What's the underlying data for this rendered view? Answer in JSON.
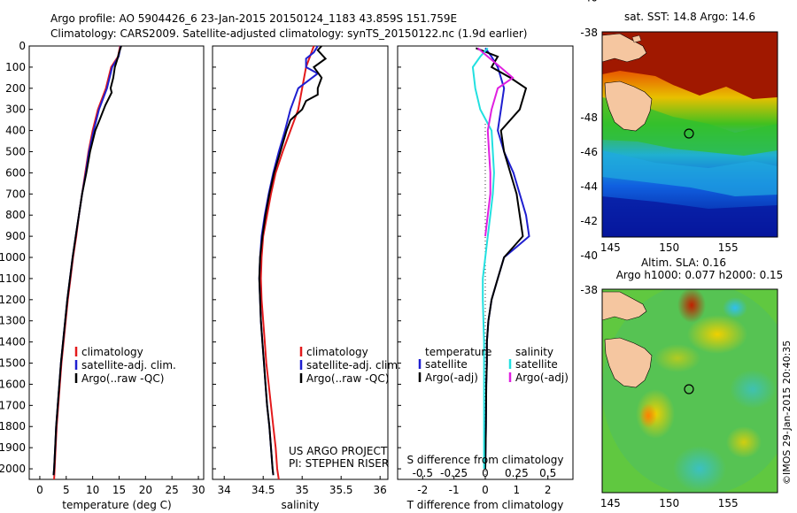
{
  "header": {
    "line1": "Argo profile: AO 5904426_6 23-Jan-2015 20150124_1183 43.859S 151.759E",
    "line2": "Climatology: CARS2009. Satellite-adjusted climatology: synTS_20150122.nc (1.9d earlier)"
  },
  "project": {
    "line1": "US ARGO PROJECT",
    "line2": "PI: STEPHEN RISER"
  },
  "stamp": "©IMOS 29-Jan-2015 20:40:35",
  "colors": {
    "clim": "#e31a1c",
    "sat": "#1f1fd0",
    "argo": "#000000",
    "sat_s": "#22e0e0",
    "argo_s": "#e020e0"
  },
  "chart_data": [
    {
      "type": "line",
      "xlabel": "temperature (deg C)",
      "xlim": [
        -2,
        31
      ],
      "xticks": [
        0,
        5,
        10,
        15,
        20,
        25,
        30
      ],
      "ylim": [
        0,
        2050
      ],
      "yticks": [
        0,
        100,
        200,
        300,
        400,
        500,
        600,
        700,
        800,
        900,
        1000,
        1100,
        1200,
        1300,
        1400,
        1500,
        1600,
        1700,
        1800,
        1900,
        2000
      ],
      "legend": [
        "climatology",
        "satellite-adj. clim.",
        "Argo(..raw -QC)"
      ],
      "series": [
        {
          "name": "climatology",
          "color": "#e31a1c",
          "points": [
            [
              15.2,
              0
            ],
            [
              14.8,
              50
            ],
            [
              13.5,
              100
            ],
            [
              12.5,
              200
            ],
            [
              11,
              300
            ],
            [
              10,
              400
            ],
            [
              9.2,
              500
            ],
            [
              8.6,
              600
            ],
            [
              8,
              700
            ],
            [
              7.4,
              800
            ],
            [
              6.9,
              900
            ],
            [
              6.3,
              1000
            ],
            [
              5.8,
              1100
            ],
            [
              5.3,
              1200
            ],
            [
              4.9,
              1300
            ],
            [
              4.5,
              1400
            ],
            [
              4.1,
              1500
            ],
            [
              3.8,
              1600
            ],
            [
              3.5,
              1700
            ],
            [
              3.2,
              1800
            ],
            [
              3,
              1900
            ],
            [
              2.8,
              2000
            ],
            [
              2.7,
              2050
            ]
          ]
        },
        {
          "name": "satellite-adj. clim.",
          "color": "#1f1fd0",
          "points": [
            [
              15.3,
              0
            ],
            [
              14.9,
              50
            ],
            [
              13.7,
              100
            ],
            [
              12.7,
              200
            ],
            [
              11.2,
              300
            ],
            [
              10.2,
              400
            ],
            [
              9.3,
              500
            ],
            [
              8.7,
              600
            ],
            [
              8,
              700
            ],
            [
              7.4,
              800
            ],
            [
              6.8,
              900
            ],
            [
              6.2,
              1000
            ],
            [
              5.7,
              1100
            ],
            [
              5.2,
              1200
            ],
            [
              4.8,
              1300
            ],
            [
              4.4,
              1400
            ],
            [
              4,
              1500
            ],
            [
              3.7,
              1600
            ],
            [
              3.4,
              1700
            ],
            [
              3.1,
              1800
            ],
            [
              2.9,
              1900
            ],
            [
              2.7,
              2000
            ],
            [
              2.6,
              2030
            ]
          ]
        },
        {
          "name": "Argo(..raw -QC)",
          "color": "#000000",
          "points": [
            [
              15.4,
              0
            ],
            [
              15,
              30
            ],
            [
              14.7,
              60
            ],
            [
              14.2,
              100
            ],
            [
              13.9,
              150
            ],
            [
              13.4,
              200
            ],
            [
              13.6,
              220
            ],
            [
              12.4,
              280
            ],
            [
              11.3,
              350
            ],
            [
              10.5,
              400
            ],
            [
              9.5,
              500
            ],
            [
              8.8,
              600
            ],
            [
              8,
              700
            ],
            [
              7.4,
              800
            ],
            [
              6.8,
              900
            ],
            [
              6.2,
              1000
            ],
            [
              5.7,
              1100
            ],
            [
              5.2,
              1200
            ],
            [
              4.8,
              1300
            ],
            [
              4.4,
              1400
            ],
            [
              4,
              1500
            ],
            [
              3.7,
              1600
            ],
            [
              3.4,
              1700
            ],
            [
              3.1,
              1800
            ],
            [
              2.9,
              1900
            ],
            [
              2.7,
              2000
            ],
            [
              2.6,
              2030
            ]
          ]
        }
      ]
    },
    {
      "type": "line",
      "xlabel": "salinity",
      "xlim": [
        33.85,
        36.1
      ],
      "xticks": [
        34,
        34.5,
        35,
        35.5,
        36
      ],
      "xticklabels": [
        "34",
        "34.5",
        "35",
        "35.5",
        "36"
      ],
      "ylim": [
        0,
        2050
      ],
      "legend": [
        "climatology",
        "satellite-adj. clim.",
        "Argo(..raw -QC)"
      ],
      "series": [
        {
          "name": "climatology",
          "color": "#e31a1c",
          "points": [
            [
              35.15,
              0
            ],
            [
              35.1,
              50
            ],
            [
              35.05,
              100
            ],
            [
              35,
              200
            ],
            [
              34.95,
              300
            ],
            [
              34.85,
              400
            ],
            [
              34.75,
              500
            ],
            [
              34.66,
              600
            ],
            [
              34.6,
              700
            ],
            [
              34.55,
              800
            ],
            [
              34.5,
              900
            ],
            [
              34.48,
              1000
            ],
            [
              34.47,
              1100
            ],
            [
              34.48,
              1200
            ],
            [
              34.5,
              1300
            ],
            [
              34.52,
              1400
            ],
            [
              34.54,
              1500
            ],
            [
              34.57,
              1600
            ],
            [
              34.6,
              1700
            ],
            [
              34.63,
              1800
            ],
            [
              34.66,
              1900
            ],
            [
              34.68,
              2000
            ],
            [
              34.7,
              2050
            ]
          ]
        },
        {
          "name": "satellite-adj. clim.",
          "color": "#1f1fd0",
          "points": [
            [
              35.2,
              0
            ],
            [
              35.15,
              30
            ],
            [
              35.05,
              60
            ],
            [
              35.05,
              100
            ],
            [
              35.2,
              130
            ],
            [
              34.95,
              200
            ],
            [
              34.85,
              300
            ],
            [
              34.78,
              400
            ],
            [
              34.7,
              500
            ],
            [
              34.63,
              600
            ],
            [
              34.57,
              700
            ],
            [
              34.52,
              800
            ],
            [
              34.48,
              900
            ],
            [
              34.46,
              1000
            ],
            [
              34.45,
              1100
            ],
            [
              34.46,
              1200
            ],
            [
              34.47,
              1300
            ],
            [
              34.49,
              1400
            ],
            [
              34.51,
              1500
            ],
            [
              34.53,
              1600
            ],
            [
              34.55,
              1700
            ],
            [
              34.58,
              1800
            ],
            [
              34.6,
              1900
            ],
            [
              34.62,
              2000
            ],
            [
              34.63,
              2030
            ]
          ]
        },
        {
          "name": "Argo(..raw -QC)",
          "color": "#000000",
          "points": [
            [
              35.25,
              0
            ],
            [
              35.2,
              20
            ],
            [
              35.3,
              60
            ],
            [
              35.15,
              100
            ],
            [
              35.25,
              150
            ],
            [
              35.2,
              200
            ],
            [
              35.2,
              230
            ],
            [
              35.05,
              260
            ],
            [
              35,
              300
            ],
            [
              34.85,
              350
            ],
            [
              34.8,
              400
            ],
            [
              34.72,
              500
            ],
            [
              34.64,
              600
            ],
            [
              34.58,
              700
            ],
            [
              34.53,
              800
            ],
            [
              34.49,
              900
            ],
            [
              34.46,
              1000
            ],
            [
              34.45,
              1100
            ],
            [
              34.46,
              1200
            ],
            [
              34.47,
              1300
            ],
            [
              34.49,
              1400
            ],
            [
              34.51,
              1500
            ],
            [
              34.53,
              1600
            ],
            [
              34.55,
              1700
            ],
            [
              34.58,
              1800
            ],
            [
              34.6,
              1900
            ],
            [
              34.62,
              2000
            ],
            [
              34.63,
              2030
            ]
          ]
        }
      ]
    },
    {
      "type": "line",
      "xlabel": "T difference from climatology",
      "xlabel2": "S difference from climatology",
      "xlim": [
        -2.8,
        2.8
      ],
      "xticks": [
        -2,
        -1,
        0,
        1,
        2
      ],
      "xticks2": [
        -0.5,
        -0.25,
        0,
        0.25,
        0.5
      ],
      "xticklabels2": [
        "-0.5",
        "-0.25",
        "0",
        "0.25",
        "0.5"
      ],
      "ylim": [
        0,
        2050
      ],
      "legend_headers": [
        "temperature",
        "salinity"
      ],
      "legend": [
        "satellite",
        "Argo(-adj)",
        "satellite",
        "Argo(-adj)"
      ],
      "series": [
        {
          "name": "satellite",
          "color": "#1f1fd0",
          "points": [
            [
              0,
              10
            ],
            [
              0.2,
              50
            ],
            [
              0.4,
              100
            ],
            [
              0.6,
              200
            ],
            [
              0.5,
              300
            ],
            [
              0.4,
              400
            ],
            [
              0.6,
              500
            ],
            [
              0.9,
              600
            ],
            [
              1.1,
              700
            ],
            [
              1.3,
              800
            ],
            [
              1.4,
              900
            ],
            [
              1,
              950
            ],
            [
              0.6,
              1000
            ],
            [
              0.4,
              1100
            ],
            [
              0.2,
              1200
            ],
            [
              0.1,
              1300
            ],
            [
              0.05,
              1400
            ],
            [
              0.05,
              1500
            ],
            [
              0.03,
              1600
            ],
            [
              0.02,
              1800
            ],
            [
              0,
              2000
            ]
          ]
        },
        {
          "name": "Argo(-adj)",
          "color": "#000000",
          "points": [
            [
              -0.3,
              10
            ],
            [
              0.4,
              50
            ],
            [
              0.2,
              100
            ],
            [
              0.8,
              150
            ],
            [
              1.3,
              200
            ],
            [
              1.1,
              300
            ],
            [
              0.5,
              400
            ],
            [
              0.6,
              500
            ],
            [
              0.8,
              600
            ],
            [
              1,
              700
            ],
            [
              1.1,
              800
            ],
            [
              1.2,
              900
            ],
            [
              0.9,
              950
            ],
            [
              0.6,
              1000
            ],
            [
              0.4,
              1100
            ],
            [
              0.2,
              1200
            ],
            [
              0.1,
              1300
            ],
            [
              0.05,
              1400
            ],
            [
              0.05,
              1500
            ],
            [
              0.03,
              1600
            ],
            [
              0.02,
              1800
            ],
            [
              0,
              2000
            ]
          ]
        },
        {
          "name": "satellite",
          "color": "#22e0e0",
          "points": [
            [
              0.02,
              10
            ],
            [
              -0.04,
              50
            ],
            [
              -0.1,
              100
            ],
            [
              -0.08,
              200
            ],
            [
              -0.04,
              300
            ],
            [
              0.05,
              400
            ],
            [
              0.06,
              500
            ],
            [
              0.07,
              600
            ],
            [
              0.06,
              700
            ],
            [
              0.04,
              800
            ],
            [
              0.02,
              900
            ],
            [
              0,
              1000
            ],
            [
              -0.02,
              1100
            ],
            [
              -0.02,
              1200
            ],
            [
              -0.01,
              1400
            ],
            [
              -0.01,
              1600
            ],
            [
              -0.01,
              1800
            ],
            [
              -0.01,
              2000
            ]
          ]
        },
        {
          "name": "Argo(-adj)",
          "color": "#e020e0",
          "points": [
            [
              -0.06,
              10
            ],
            [
              0.02,
              50
            ],
            [
              0.12,
              100
            ],
            [
              0.22,
              150
            ],
            [
              0.1,
              200
            ],
            [
              0.05,
              300
            ],
            [
              0.02,
              400
            ],
            [
              0.03,
              500
            ],
            [
              0.04,
              600
            ],
            [
              0.04,
              700
            ],
            [
              0.02,
              800
            ],
            [
              0,
              900
            ]
          ]
        }
      ]
    },
    {
      "type": "heatmap",
      "title": "sat. SST: 14.8 Argo: 14.6",
      "xticks": [
        145,
        150,
        155
      ],
      "yticks": [
        -38,
        -40,
        -42,
        -44,
        -46,
        -48
      ],
      "marker": [
        151.759,
        -43.859
      ]
    },
    {
      "type": "heatmap",
      "title": "Altim. SLA: 0.16",
      "subtitle": "Argo h1000: 0.077 h2000: 0.15",
      "xticks": [
        145,
        150,
        155
      ],
      "yticks": [
        -38,
        -40,
        -42,
        -44,
        -46,
        -48
      ],
      "marker": [
        151.759,
        -43.859
      ]
    }
  ]
}
